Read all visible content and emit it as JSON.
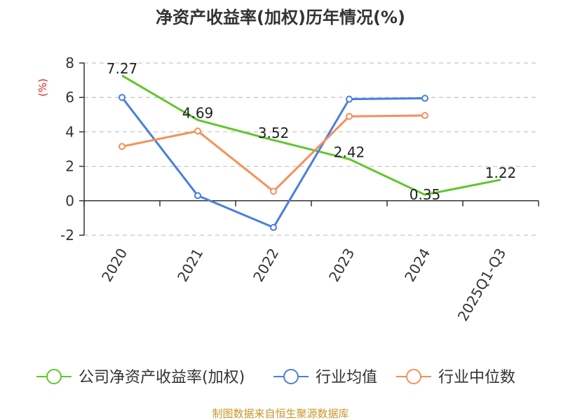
{
  "chart_data": {
    "type": "line",
    "title": "净资产收益率(加权)历年情况(%)",
    "unit_label": "(%)",
    "categories": [
      "2020",
      "2021",
      "2022",
      "2023",
      "2024",
      "2025Q1-Q3"
    ],
    "ylim": [
      -2,
      8
    ],
    "yticks": [
      8,
      6,
      4,
      2,
      0,
      -2
    ],
    "ytick_labels": [
      "8",
      "6",
      "4",
      "2",
      "0",
      "-2"
    ],
    "grid": true,
    "legend_position": "bottom",
    "series": [
      {
        "name": "公司净资产收益率(加权)",
        "color": "#5ec72a",
        "values": [
          7.27,
          4.69,
          3.52,
          2.42,
          0.35,
          1.22
        ],
        "labels": [
          "7.27",
          "4.69",
          "3.52",
          "2.42",
          "0.35",
          "1.22"
        ],
        "markers": false
      },
      {
        "name": "行业均值",
        "color": "#4a7fdc",
        "values": [
          6.0,
          0.3,
          -1.55,
          5.9,
          5.95,
          null
        ],
        "markers": true
      },
      {
        "name": "行业中位数",
        "color": "#f5905a",
        "values": [
          3.15,
          4.05,
          0.55,
          4.9,
          4.95,
          null
        ],
        "markers": true
      }
    ],
    "source": "制图数据来自恒生聚源数据库"
  }
}
